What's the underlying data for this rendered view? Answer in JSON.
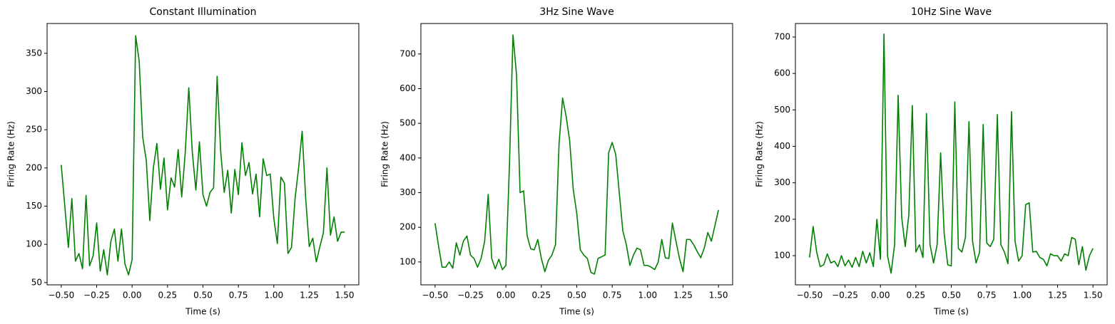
{
  "chart_data": [
    {
      "type": "line",
      "title": "Constant Illumination",
      "xlabel": "Time (s)",
      "ylabel": "Firing Rate (Hz)",
      "color": "#008000",
      "x": [
        -0.5,
        -0.475,
        -0.45,
        -0.425,
        -0.4,
        -0.375,
        -0.35,
        -0.325,
        -0.3,
        -0.275,
        -0.25,
        -0.225,
        -0.2,
        -0.175,
        -0.15,
        -0.125,
        -0.1,
        -0.075,
        -0.05,
        -0.025,
        0,
        0.025,
        0.05,
        0.075,
        0.1,
        0.125,
        0.15,
        0.175,
        0.2,
        0.225,
        0.25,
        0.275,
        0.3,
        0.325,
        0.35,
        0.375,
        0.4,
        0.425,
        0.45,
        0.475,
        0.5,
        0.525,
        0.55,
        0.575,
        0.6,
        0.625,
        0.65,
        0.675,
        0.7,
        0.725,
        0.75,
        0.775,
        0.8,
        0.825,
        0.85,
        0.875,
        0.9,
        0.925,
        0.95,
        0.975,
        1,
        1.025,
        1.05,
        1.075,
        1.1,
        1.125,
        1.15,
        1.175,
        1.2,
        1.225,
        1.25,
        1.275,
        1.3,
        1.325,
        1.35,
        1.375,
        1.4,
        1.425,
        1.45,
        1.475,
        1.5
      ],
      "values": [
        204,
        150,
        96,
        160,
        78,
        88,
        68,
        164,
        72,
        85,
        128,
        65,
        93,
        60,
        104,
        120,
        78,
        120,
        74,
        60,
        80,
        373,
        340,
        240,
        210,
        131,
        200,
        232,
        172,
        213,
        145,
        187,
        175,
        224,
        162,
        220,
        305,
        220,
        171,
        234,
        165,
        150,
        168,
        174,
        320,
        222,
        168,
        197,
        141,
        198,
        165,
        233,
        190,
        207,
        166,
        192,
        136,
        212,
        190,
        192,
        134,
        101,
        188,
        180,
        88,
        96,
        160,
        200,
        248,
        160,
        97,
        108,
        77,
        97,
        115,
        200,
        112,
        136,
        104,
        116,
        116
      ],
      "xlim": [
        -0.6,
        1.6
      ],
      "ylim": [
        47,
        389
      ],
      "xticks": [
        {
          "value": -0.5,
          "label": "−0.50"
        },
        {
          "value": -0.25,
          "label": "−0.25"
        },
        {
          "value": 0,
          "label": "0.00"
        },
        {
          "value": 0.25,
          "label": "0.25"
        },
        {
          "value": 0.5,
          "label": "0.50"
        },
        {
          "value": 0.75,
          "label": "0.75"
        },
        {
          "value": 1,
          "label": "1.00"
        },
        {
          "value": 1.25,
          "label": "1.25"
        },
        {
          "value": 1.5,
          "label": "1.50"
        }
      ],
      "yticks": [
        50,
        100,
        150,
        200,
        250,
        300,
        350
      ]
    },
    {
      "type": "line",
      "title": "3Hz Sine Wave",
      "xlabel": "Time (s)",
      "ylabel": "Firing Rate (Hz)",
      "color": "#008000",
      "x": [
        -0.5,
        -0.475,
        -0.45,
        -0.425,
        -0.4,
        -0.375,
        -0.35,
        -0.325,
        -0.3,
        -0.275,
        -0.25,
        -0.225,
        -0.2,
        -0.175,
        -0.15,
        -0.125,
        -0.1,
        -0.075,
        -0.05,
        -0.025,
        0,
        0.025,
        0.05,
        0.075,
        0.1,
        0.125,
        0.15,
        0.175,
        0.2,
        0.225,
        0.25,
        0.275,
        0.3,
        0.325,
        0.35,
        0.375,
        0.4,
        0.425,
        0.45,
        0.475,
        0.5,
        0.525,
        0.55,
        0.575,
        0.6,
        0.625,
        0.65,
        0.675,
        0.7,
        0.725,
        0.75,
        0.775,
        0.8,
        0.825,
        0.85,
        0.875,
        0.9,
        0.925,
        0.95,
        0.975,
        1,
        1.025,
        1.05,
        1.075,
        1.1,
        1.125,
        1.15,
        1.175,
        1.2,
        1.225,
        1.25,
        1.275,
        1.3,
        1.325,
        1.35,
        1.375,
        1.4,
        1.425,
        1.45,
        1.475,
        1.5
      ],
      "values": [
        212,
        145,
        85,
        85,
        100,
        82,
        155,
        120,
        160,
        175,
        120,
        110,
        85,
        110,
        160,
        295,
        110,
        80,
        108,
        78,
        90,
        380,
        755,
        640,
        300,
        305,
        175,
        138,
        135,
        165,
        110,
        72,
        105,
        120,
        150,
        440,
        573,
        520,
        450,
        310,
        240,
        135,
        120,
        110,
        70,
        65,
        110,
        115,
        120,
        415,
        445,
        410,
        300,
        190,
        150,
        90,
        120,
        140,
        135,
        90,
        90,
        85,
        78,
        100,
        165,
        112,
        110,
        212,
        160,
        110,
        72,
        165,
        165,
        150,
        130,
        112,
        140,
        185,
        160,
        205,
        250
      ],
      "xlim": [
        -0.6,
        1.6
      ],
      "ylim": [
        34,
        788
      ],
      "xticks": [
        {
          "value": -0.5,
          "label": "−0.50"
        },
        {
          "value": -0.25,
          "label": "−0.25"
        },
        {
          "value": 0,
          "label": "0.00"
        },
        {
          "value": 0.25,
          "label": "0.25"
        },
        {
          "value": 0.5,
          "label": "0.50"
        },
        {
          "value": 0.75,
          "label": "0.75"
        },
        {
          "value": 1,
          "label": "1.00"
        },
        {
          "value": 1.25,
          "label": "1.25"
        },
        {
          "value": 1.5,
          "label": "1.50"
        }
      ],
      "yticks": [
        100,
        200,
        300,
        400,
        500,
        600,
        700
      ]
    },
    {
      "type": "line",
      "title": "10Hz Sine Wave",
      "xlabel": "Time (s)",
      "ylabel": "Firing Rate (Hz)",
      "color": "#008000",
      "x": [
        -0.5,
        -0.475,
        -0.45,
        -0.425,
        -0.4,
        -0.375,
        -0.35,
        -0.325,
        -0.3,
        -0.275,
        -0.25,
        -0.225,
        -0.2,
        -0.175,
        -0.15,
        -0.125,
        -0.1,
        -0.075,
        -0.05,
        -0.025,
        0,
        0.025,
        0.05,
        0.075,
        0.1,
        0.125,
        0.15,
        0.175,
        0.2,
        0.225,
        0.25,
        0.275,
        0.3,
        0.325,
        0.35,
        0.375,
        0.4,
        0.425,
        0.45,
        0.475,
        0.5,
        0.525,
        0.55,
        0.575,
        0.6,
        0.625,
        0.65,
        0.675,
        0.7,
        0.725,
        0.75,
        0.775,
        0.8,
        0.825,
        0.85,
        0.875,
        0.9,
        0.925,
        0.95,
        0.975,
        1,
        1.025,
        1.05,
        1.075,
        1.1,
        1.125,
        1.15,
        1.175,
        1.2,
        1.225,
        1.25,
        1.275,
        1.3,
        1.325,
        1.35,
        1.375,
        1.4,
        1.425,
        1.45,
        1.475,
        1.5
      ],
      "values": [
        95,
        180,
        110,
        70,
        75,
        105,
        80,
        85,
        70,
        100,
        72,
        88,
        68,
        95,
        70,
        112,
        80,
        108,
        70,
        200,
        90,
        708,
        100,
        52,
        130,
        540,
        205,
        125,
        210,
        512,
        110,
        130,
        95,
        490,
        130,
        80,
        130,
        382,
        160,
        75,
        72,
        522,
        120,
        110,
        150,
        468,
        140,
        80,
        110,
        460,
        135,
        125,
        145,
        487,
        130,
        110,
        78,
        495,
        140,
        85,
        100,
        240,
        245,
        110,
        112,
        95,
        90,
        72,
        105,
        100,
        100,
        85,
        105,
        100,
        150,
        145,
        75,
        125,
        60,
        100,
        120
      ],
      "xlim": [
        -0.6,
        1.6
      ],
      "ylim": [
        20,
        737
      ],
      "xticks": [
        {
          "value": -0.5,
          "label": "−0.50"
        },
        {
          "value": -0.25,
          "label": "−0.25"
        },
        {
          "value": 0,
          "label": "0.00"
        },
        {
          "value": 0.25,
          "label": "0.25"
        },
        {
          "value": 0.5,
          "label": "0.50"
        },
        {
          "value": 0.75,
          "label": "0.75"
        },
        {
          "value": 1,
          "label": "1.00"
        },
        {
          "value": 1.25,
          "label": "1.25"
        },
        {
          "value": 1.5,
          "label": "1.50"
        }
      ],
      "yticks": [
        100,
        200,
        300,
        400,
        500,
        600,
        700
      ]
    }
  ]
}
